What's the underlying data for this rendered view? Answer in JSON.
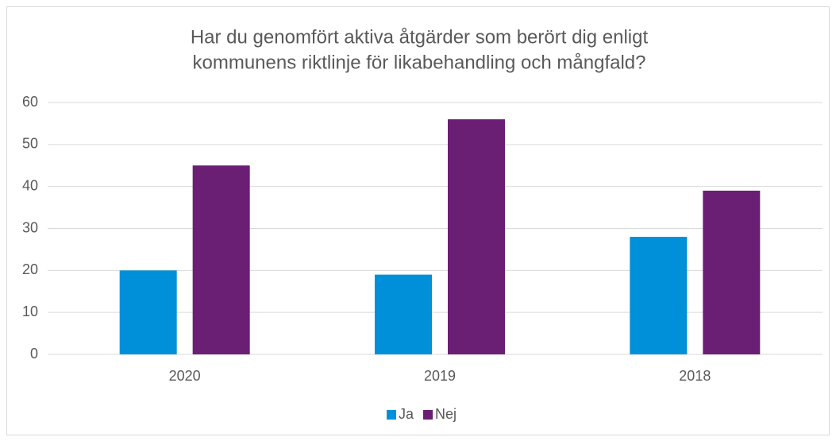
{
  "chart_data": {
    "type": "bar",
    "title": [
      "Har du genomfört aktiva åtgärder som berört dig enligt",
      "kommunens riktlinje för likabehandling och mångfald?"
    ],
    "categories": [
      "2020",
      "2019",
      "2018"
    ],
    "series": [
      {
        "name": "Ja",
        "color": "#0090d9",
        "values": [
          20,
          19,
          28
        ]
      },
      {
        "name": "Nej",
        "color": "#6b1f74",
        "values": [
          45,
          56,
          39
        ]
      }
    ],
    "ylim": [
      0,
      60
    ],
    "yticks": [
      0,
      10,
      20,
      30,
      40,
      50,
      60
    ],
    "grid": true,
    "legend": "bottom"
  }
}
